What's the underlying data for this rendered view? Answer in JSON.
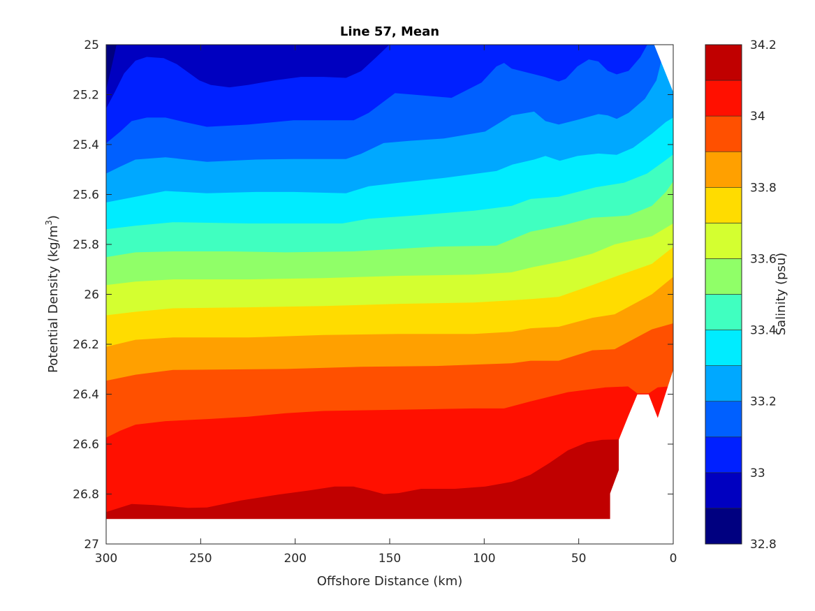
{
  "chart_data": {
    "type": "contour",
    "title": "Line 57, Mean",
    "xlabel": "Offshore Distance (km)",
    "ylabel": {
      "main": "Potential Density (kg/m",
      "sup": "3",
      "end": ")"
    },
    "xlim": [
      300,
      0
    ],
    "ylim": [
      25,
      27
    ],
    "x_reversed": true,
    "y_reversed": true,
    "xticks": [
      300,
      250,
      200,
      150,
      100,
      50,
      0
    ],
    "xtick_labels": [
      "300",
      "250",
      "200",
      "150",
      "100",
      "50",
      "0"
    ],
    "yticks": [
      25,
      25.2,
      25.4,
      25.6,
      25.8,
      26,
      26.2,
      26.4,
      26.6,
      26.8,
      27
    ],
    "ytick_labels": [
      "25",
      "25.2",
      "25.4",
      "25.6",
      "25.8",
      "26",
      "26.2",
      "26.4",
      "26.6",
      "26.8",
      "27"
    ],
    "grid": false,
    "colorbar": {
      "label": "Salinity (psu)",
      "range": [
        32.8,
        34.2
      ],
      "levels": [
        32.8,
        32.9,
        33.0,
        33.1,
        33.2,
        33.3,
        33.4,
        33.5,
        33.6,
        33.7,
        33.8,
        33.9,
        34.0,
        34.1,
        34.2
      ],
      "colors": [
        "#000080",
        "#0000c0",
        "#0020ff",
        "#0060ff",
        "#00a8ff",
        "#00ecff",
        "#40ffc0",
        "#90ff68",
        "#d4ff30",
        "#ffdc00",
        "#ffa000",
        "#ff5000",
        "#ff1000",
        "#c00000"
      ],
      "ticks": [
        32.8,
        33.0,
        33.2,
        33.4,
        33.6,
        33.8,
        34.0,
        34.2
      ],
      "tick_labels": [
        "32.8",
        "33",
        "33.2",
        "33.4",
        "33.6",
        "33.8",
        "34",
        "34.2"
      ]
    },
    "contour_boundaries": [
      {
        "level": 32.9,
        "points": [
          [
            300,
            25.18
          ],
          [
            297.5,
            25.1
          ],
          [
            294.5,
            25
          ]
        ]
      },
      {
        "level": 33.0,
        "points": [
          [
            300,
            25.255
          ],
          [
            295.4,
            25.189
          ],
          [
            290.5,
            25.115
          ],
          [
            284.5,
            25.064
          ],
          [
            278.5,
            25.049
          ],
          [
            269.6,
            25.054
          ],
          [
            262.6,
            25.078
          ],
          [
            250.7,
            25.143
          ],
          [
            244.7,
            25.161
          ],
          [
            234.8,
            25.171
          ],
          [
            224.8,
            25.161
          ],
          [
            210.9,
            25.143
          ],
          [
            197,
            25.129
          ],
          [
            185,
            25.129
          ],
          [
            173.1,
            25.133
          ],
          [
            165.1,
            25.106
          ],
          [
            157.1,
            25.05
          ],
          [
            150.2,
            25
          ]
        ]
      },
      {
        "level": 33.1,
        "points": [
          [
            300,
            25.395
          ],
          [
            292.5,
            25.348
          ],
          [
            286.5,
            25.306
          ],
          [
            278.5,
            25.292
          ],
          [
            268.6,
            25.292
          ],
          [
            258.6,
            25.31
          ],
          [
            246.7,
            25.329
          ],
          [
            224.8,
            25.32
          ],
          [
            200.9,
            25.303
          ],
          [
            169.1,
            25.303
          ],
          [
            161.1,
            25.273
          ],
          [
            147.2,
            25.194
          ],
          [
            139.2,
            25.199
          ],
          [
            117.3,
            25.213
          ],
          [
            101.4,
            25.152
          ],
          [
            93.5,
            25.087
          ],
          [
            89.5,
            25.073
          ],
          [
            85.5,
            25.096
          ],
          [
            75.4,
            25.115
          ],
          [
            68,
            25.129
          ],
          [
            60.6,
            25.147
          ],
          [
            56.9,
            25.137
          ],
          [
            50.7,
            25.087
          ],
          [
            44.7,
            25.059
          ],
          [
            39.6,
            25.067
          ],
          [
            34.6,
            25.105
          ],
          [
            29.9,
            25.119
          ],
          [
            23.6,
            25.105
          ],
          [
            17.4,
            25.05
          ],
          [
            13.7,
            25
          ]
        ]
      },
      {
        "level": 33.2,
        "points": [
          [
            300,
            25.516
          ],
          [
            292.5,
            25.488
          ],
          [
            284.5,
            25.46
          ],
          [
            268.6,
            25.451
          ],
          [
            246.7,
            25.469
          ],
          [
            220.8,
            25.46
          ],
          [
            200.9,
            25.458
          ],
          [
            173.1,
            25.458
          ],
          [
            165.1,
            25.437
          ],
          [
            153.2,
            25.394
          ],
          [
            139.3,
            25.385
          ],
          [
            121.4,
            25.376
          ],
          [
            99.5,
            25.348
          ],
          [
            85.5,
            25.283
          ],
          [
            73.6,
            25.268
          ],
          [
            67.6,
            25.306
          ],
          [
            60.6,
            25.32
          ],
          [
            50.7,
            25.301
          ],
          [
            39.6,
            25.278
          ],
          [
            34.6,
            25.283
          ],
          [
            29.9,
            25.297
          ],
          [
            23.6,
            25.273
          ],
          [
            15,
            25.217
          ],
          [
            8.9,
            25.143
          ],
          [
            6.4,
            25.068
          ],
          [
            0,
            25.05
          ]
        ]
      },
      {
        "level": 33.3,
        "points": [
          [
            300,
            25.632
          ],
          [
            284.5,
            25.609
          ],
          [
            268.6,
            25.586
          ],
          [
            246.7,
            25.595
          ],
          [
            220.8,
            25.59
          ],
          [
            200.9,
            25.59
          ],
          [
            173.1,
            25.595
          ],
          [
            161.1,
            25.567
          ],
          [
            145.2,
            25.553
          ],
          [
            121.4,
            25.534
          ],
          [
            93.5,
            25.506
          ],
          [
            85,
            25.48
          ],
          [
            73.6,
            25.46
          ],
          [
            67.6,
            25.446
          ],
          [
            60,
            25.465
          ],
          [
            50.7,
            25.446
          ],
          [
            39.6,
            25.436
          ],
          [
            29.9,
            25.441
          ],
          [
            21.2,
            25.413
          ],
          [
            11.3,
            25.357
          ],
          [
            3.9,
            25.31
          ],
          [
            0,
            25.292
          ]
        ]
      },
      {
        "level": 33.4,
        "points": [
          [
            300,
            25.739
          ],
          [
            284.5,
            25.725
          ],
          [
            264.6,
            25.711
          ],
          [
            224.8,
            25.716
          ],
          [
            175.1,
            25.716
          ],
          [
            161.1,
            25.697
          ],
          [
            135.3,
            25.683
          ],
          [
            105.4,
            25.665
          ],
          [
            85.5,
            25.646
          ],
          [
            75.4,
            25.618
          ],
          [
            60.6,
            25.609
          ],
          [
            40.9,
            25.571
          ],
          [
            26.1,
            25.553
          ],
          [
            13.8,
            25.516
          ],
          [
            5.2,
            25.469
          ],
          [
            0,
            25.44
          ]
        ]
      },
      {
        "level": 33.5,
        "points": [
          [
            300,
            25.851
          ],
          [
            284.5,
            25.832
          ],
          [
            264.6,
            25.828
          ],
          [
            234.8,
            25.828
          ],
          [
            205,
            25.832
          ],
          [
            169.1,
            25.828
          ],
          [
            125.3,
            25.809
          ],
          [
            93.5,
            25.805
          ],
          [
            75.4,
            25.749
          ],
          [
            56.9,
            25.721
          ],
          [
            42.8,
            25.693
          ],
          [
            31,
            25.688
          ],
          [
            23.6,
            25.684
          ],
          [
            11.3,
            25.646
          ],
          [
            3.9,
            25.59
          ],
          [
            0,
            25.548
          ]
        ]
      },
      {
        "level": 33.6,
        "points": [
          [
            300,
            25.963
          ],
          [
            284.5,
            25.949
          ],
          [
            264.6,
            25.94
          ],
          [
            224.8,
            25.94
          ],
          [
            185,
            25.935
          ],
          [
            145.2,
            25.926
          ],
          [
            105.4,
            25.921
          ],
          [
            85.5,
            25.912
          ],
          [
            75.4,
            25.893
          ],
          [
            56.9,
            25.865
          ],
          [
            42.8,
            25.837
          ],
          [
            31,
            25.8
          ],
          [
            11.3,
            25.767
          ],
          [
            0,
            25.716
          ]
        ]
      },
      {
        "level": 33.7,
        "points": [
          [
            300,
            26.084
          ],
          [
            284.5,
            26.07
          ],
          [
            264.6,
            26.056
          ],
          [
            224.8,
            26.052
          ],
          [
            185,
            26.047
          ],
          [
            145.2,
            26.038
          ],
          [
            105.4,
            26.033
          ],
          [
            85.5,
            26.024
          ],
          [
            75.4,
            26.019
          ],
          [
            60.6,
            26.01
          ],
          [
            42.8,
            25.963
          ],
          [
            31,
            25.93
          ],
          [
            11.3,
            25.878
          ],
          [
            0,
            25.81
          ]
        ]
      },
      {
        "level": 33.8,
        "points": [
          [
            300,
            26.21
          ],
          [
            284.5,
            26.182
          ],
          [
            264.6,
            26.173
          ],
          [
            224.8,
            26.173
          ],
          [
            185,
            26.163
          ],
          [
            145.2,
            26.159
          ],
          [
            105.4,
            26.159
          ],
          [
            85.5,
            26.15
          ],
          [
            75.4,
            26.136
          ],
          [
            60.6,
            26.13
          ],
          [
            42.8,
            26.094
          ],
          [
            31,
            26.08
          ],
          [
            11.3,
            26.0
          ],
          [
            0,
            25.93
          ]
        ]
      },
      {
        "level": 33.9,
        "points": [
          [
            300,
            26.346
          ],
          [
            284.5,
            26.322
          ],
          [
            264.6,
            26.303
          ],
          [
            204.9,
            26.299
          ],
          [
            165.1,
            26.29
          ],
          [
            125.3,
            26.287
          ],
          [
            85.5,
            26.276
          ],
          [
            75.4,
            26.266
          ],
          [
            60.6,
            26.266
          ],
          [
            42.8,
            26.224
          ],
          [
            31,
            26.22
          ],
          [
            11.3,
            26.14
          ],
          [
            0,
            26.116
          ]
        ]
      },
      {
        "level": 34.0,
        "points": [
          [
            300,
            26.574
          ],
          [
            292.5,
            26.546
          ],
          [
            284.5,
            26.522
          ],
          [
            268.6,
            26.508
          ],
          [
            244.7,
            26.499
          ],
          [
            224.8,
            26.49
          ],
          [
            204.9,
            26.476
          ],
          [
            185,
            26.467
          ],
          [
            145.2,
            26.462
          ],
          [
            105.4,
            26.457
          ],
          [
            89.5,
            26.457
          ],
          [
            75.6,
            26.429
          ],
          [
            55.7,
            26.392
          ],
          [
            35.8,
            26.373
          ],
          [
            23.9,
            26.369
          ],
          [
            19,
            26.397
          ],
          [
            13,
            26.397
          ],
          [
            8.2,
            26.373
          ],
          [
            2.2,
            26.369
          ],
          [
            0,
            26.36
          ]
        ]
      },
      {
        "level": 34.1,
        "points": [
          [
            300,
            26.872
          ],
          [
            286.5,
            26.84
          ],
          [
            274.6,
            26.844
          ],
          [
            256.7,
            26.855
          ],
          [
            246.7,
            26.854
          ],
          [
            228.8,
            26.826
          ],
          [
            208.9,
            26.802
          ],
          [
            193,
            26.786
          ],
          [
            179.1,
            26.77
          ],
          [
            169.1,
            26.77
          ],
          [
            161.1,
            26.784
          ],
          [
            153.2,
            26.8
          ],
          [
            145.2,
            26.796
          ],
          [
            133.3,
            26.779
          ],
          [
            115.4,
            26.779
          ],
          [
            99.4,
            26.77
          ],
          [
            85.5,
            26.751
          ],
          [
            75.6,
            26.723
          ],
          [
            65.6,
            26.676
          ],
          [
            55.7,
            26.625
          ],
          [
            45.7,
            26.593
          ],
          [
            37.8,
            26.583
          ],
          [
            28.8,
            26.581
          ],
          [
            0,
            26.58
          ]
        ]
      }
    ],
    "no_data_regions": [
      {
        "name": "bottom-nodata",
        "points": [
          [
            33.4,
            26.9
          ],
          [
            33.4,
            26.798
          ],
          [
            28.8,
            26.704
          ],
          [
            28.8,
            26.583
          ],
          [
            23.9,
            26.49
          ],
          [
            19,
            26.401
          ],
          [
            13,
            26.401
          ],
          [
            8.2,
            26.495
          ],
          [
            0,
            26.303
          ],
          [
            0,
            27
          ],
          [
            300,
            27
          ],
          [
            300,
            26.9
          ]
        ]
      },
      {
        "name": "top-right-nodata",
        "points": [
          [
            10.1,
            25
          ],
          [
            0,
            25.19
          ],
          [
            0,
            25
          ]
        ]
      }
    ]
  }
}
